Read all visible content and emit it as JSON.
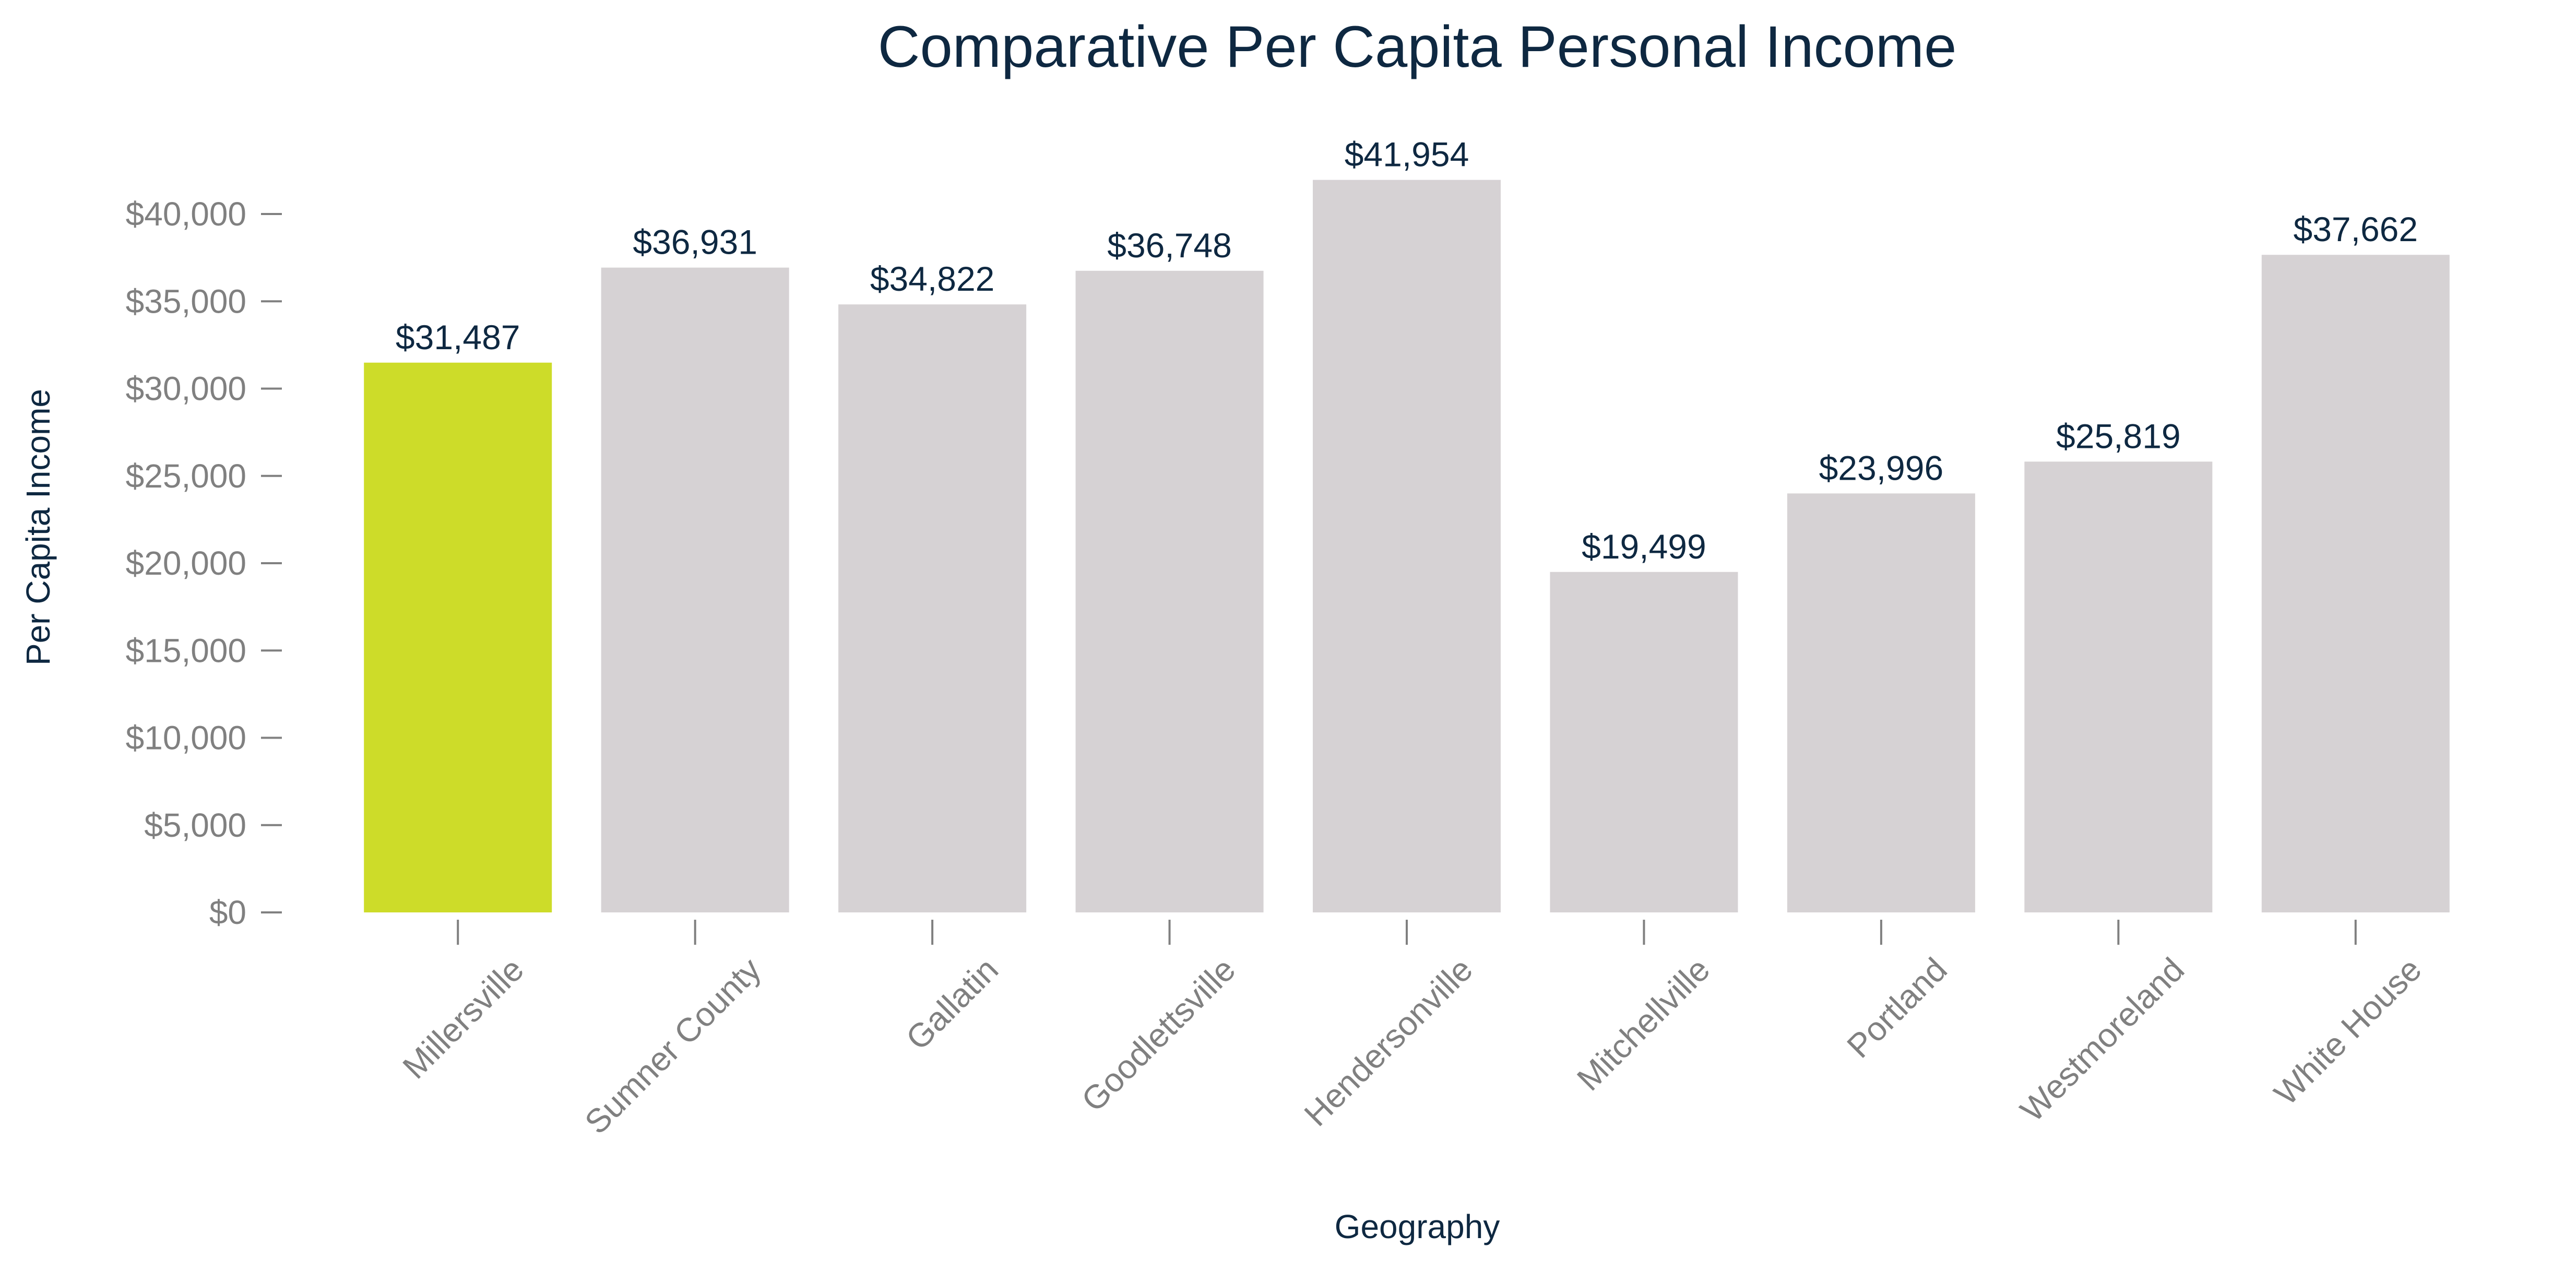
{
  "chart_data": {
    "type": "bar",
    "title": "Comparative Per Capita Personal Income",
    "xlabel": "Geography",
    "ylabel": "Per Capita Income",
    "categories": [
      "Millersville",
      "Sumner County",
      "Gallatin",
      "Goodlettsville",
      "Hendersonville",
      "Mitchellville",
      "Portland",
      "Westmoreland",
      "White House"
    ],
    "values": [
      31487,
      36931,
      34822,
      36748,
      41954,
      19499,
      23996,
      25819,
      37662
    ],
    "data_labels": [
      "$31,487",
      "$36,931",
      "$34,822",
      "$36,748",
      "$41,954",
      "$19,499",
      "$23,996",
      "$25,819",
      "$37,662"
    ],
    "ylim": [
      0,
      40000
    ],
    "yticks": [
      0,
      5000,
      10000,
      15000,
      20000,
      25000,
      30000,
      35000,
      40000
    ],
    "ytick_labels": [
      "$0",
      "$5,000",
      "$10,000",
      "$15,000",
      "$20,000",
      "$25,000",
      "$30,000",
      "$35,000",
      "$40,000"
    ],
    "grid": false,
    "legend": "none",
    "colors": {
      "highlight": "#cddc29",
      "bar": "#d6d2d4",
      "text": "#0e2841",
      "tick_text": "#808080",
      "axis": "#808080"
    },
    "highlight_index": 0
  }
}
